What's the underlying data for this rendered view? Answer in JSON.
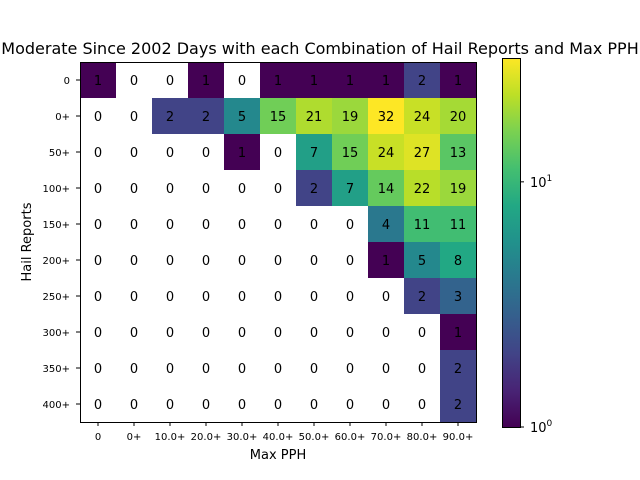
{
  "chart_data": {
    "type": "heatmap",
    "title": "Moderate Since 2002 Days with each Combination of Hail Reports and Max PPH",
    "xlabel": "Max PPH",
    "ylabel": "Hail Reports",
    "x_categories": [
      "0",
      "0+",
      "10.0+",
      "20.0+",
      "30.0+",
      "40.0+",
      "50.0+",
      "60.0+",
      "70.0+",
      "80.0+",
      "90.0+"
    ],
    "y_categories": [
      "0",
      "0+",
      "50+",
      "100+",
      "150+",
      "200+",
      "250+",
      "300+",
      "350+",
      "400+"
    ],
    "values": [
      [
        1,
        0,
        0,
        1,
        0,
        1,
        1,
        1,
        1,
        2,
        1
      ],
      [
        0,
        0,
        2,
        2,
        5,
        15,
        21,
        19,
        32,
        24,
        20
      ],
      [
        0,
        0,
        0,
        0,
        1,
        0,
        7,
        15,
        24,
        27,
        13
      ],
      [
        0,
        0,
        0,
        0,
        0,
        0,
        2,
        7,
        14,
        22,
        19
      ],
      [
        0,
        0,
        0,
        0,
        0,
        0,
        0,
        0,
        4,
        11,
        11
      ],
      [
        0,
        0,
        0,
        0,
        0,
        0,
        0,
        0,
        1,
        5,
        8
      ],
      [
        0,
        0,
        0,
        0,
        0,
        0,
        0,
        0,
        0,
        2,
        3
      ],
      [
        0,
        0,
        0,
        0,
        0,
        0,
        0,
        0,
        0,
        0,
        1
      ],
      [
        0,
        0,
        0,
        0,
        0,
        0,
        0,
        0,
        0,
        0,
        2
      ],
      [
        0,
        0,
        0,
        0,
        0,
        0,
        0,
        0,
        0,
        0,
        2
      ]
    ],
    "zero_cell_color": "#ffffff",
    "colorbar": {
      "scale": "log",
      "range": [
        1,
        32
      ],
      "colormap": "viridis",
      "tick_labels": [
        {
          "base": "10",
          "exp": "0",
          "value": 1
        },
        {
          "base": "10",
          "exp": "1",
          "value": 10
        }
      ]
    }
  }
}
